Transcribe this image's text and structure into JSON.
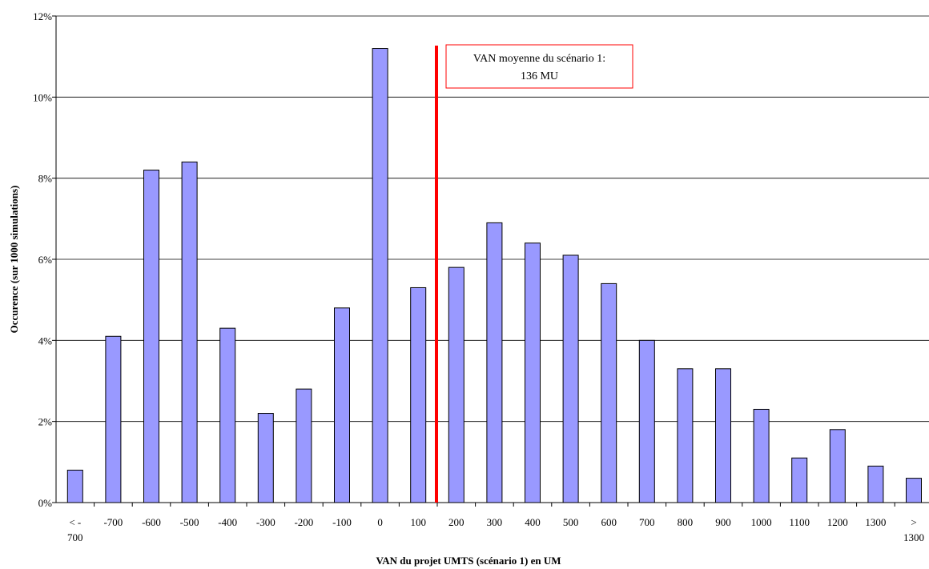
{
  "chart_data": {
    "type": "bar",
    "title": "",
    "xlabel": "VAN du projet UMTS (scénario 1) en UM",
    "ylabel": "Occurence (sur 1000 simulations)",
    "ylim": [
      0,
      12
    ],
    "yticks": [
      "0%",
      "2%",
      "4%",
      "6%",
      "8%",
      "10%",
      "12%"
    ],
    "grid": "horizontal",
    "categories": [
      [
        "< -",
        "700"
      ],
      [
        "-700"
      ],
      [
        "-600"
      ],
      [
        "-500"
      ],
      [
        "-400"
      ],
      [
        "-300"
      ],
      [
        "-200"
      ],
      [
        "-100"
      ],
      [
        "0"
      ],
      [
        "100"
      ],
      [
        "200"
      ],
      [
        "300"
      ],
      [
        "400"
      ],
      [
        "500"
      ],
      [
        "600"
      ],
      [
        "700"
      ],
      [
        "800"
      ],
      [
        "900"
      ],
      [
        "1000"
      ],
      [
        "1100"
      ],
      [
        "1200"
      ],
      [
        "1300"
      ],
      [
        ">",
        "1300"
      ]
    ],
    "values": [
      0.8,
      4.1,
      8.2,
      8.4,
      4.3,
      2.2,
      2.8,
      4.8,
      11.2,
      5.3,
      5.8,
      6.9,
      6.4,
      6.1,
      5.4,
      4.0,
      3.3,
      3.3,
      2.3,
      1.1,
      1.8,
      0.9,
      0.6
    ],
    "bar_color": "#9999ff",
    "bar_edge_color": "#000000",
    "mean_line": {
      "color": "#ff0000",
      "position_between": [
        "100",
        "200"
      ],
      "label_lines": [
        "VAN moyenne du scénario 1:",
        "136 MU"
      ]
    }
  }
}
